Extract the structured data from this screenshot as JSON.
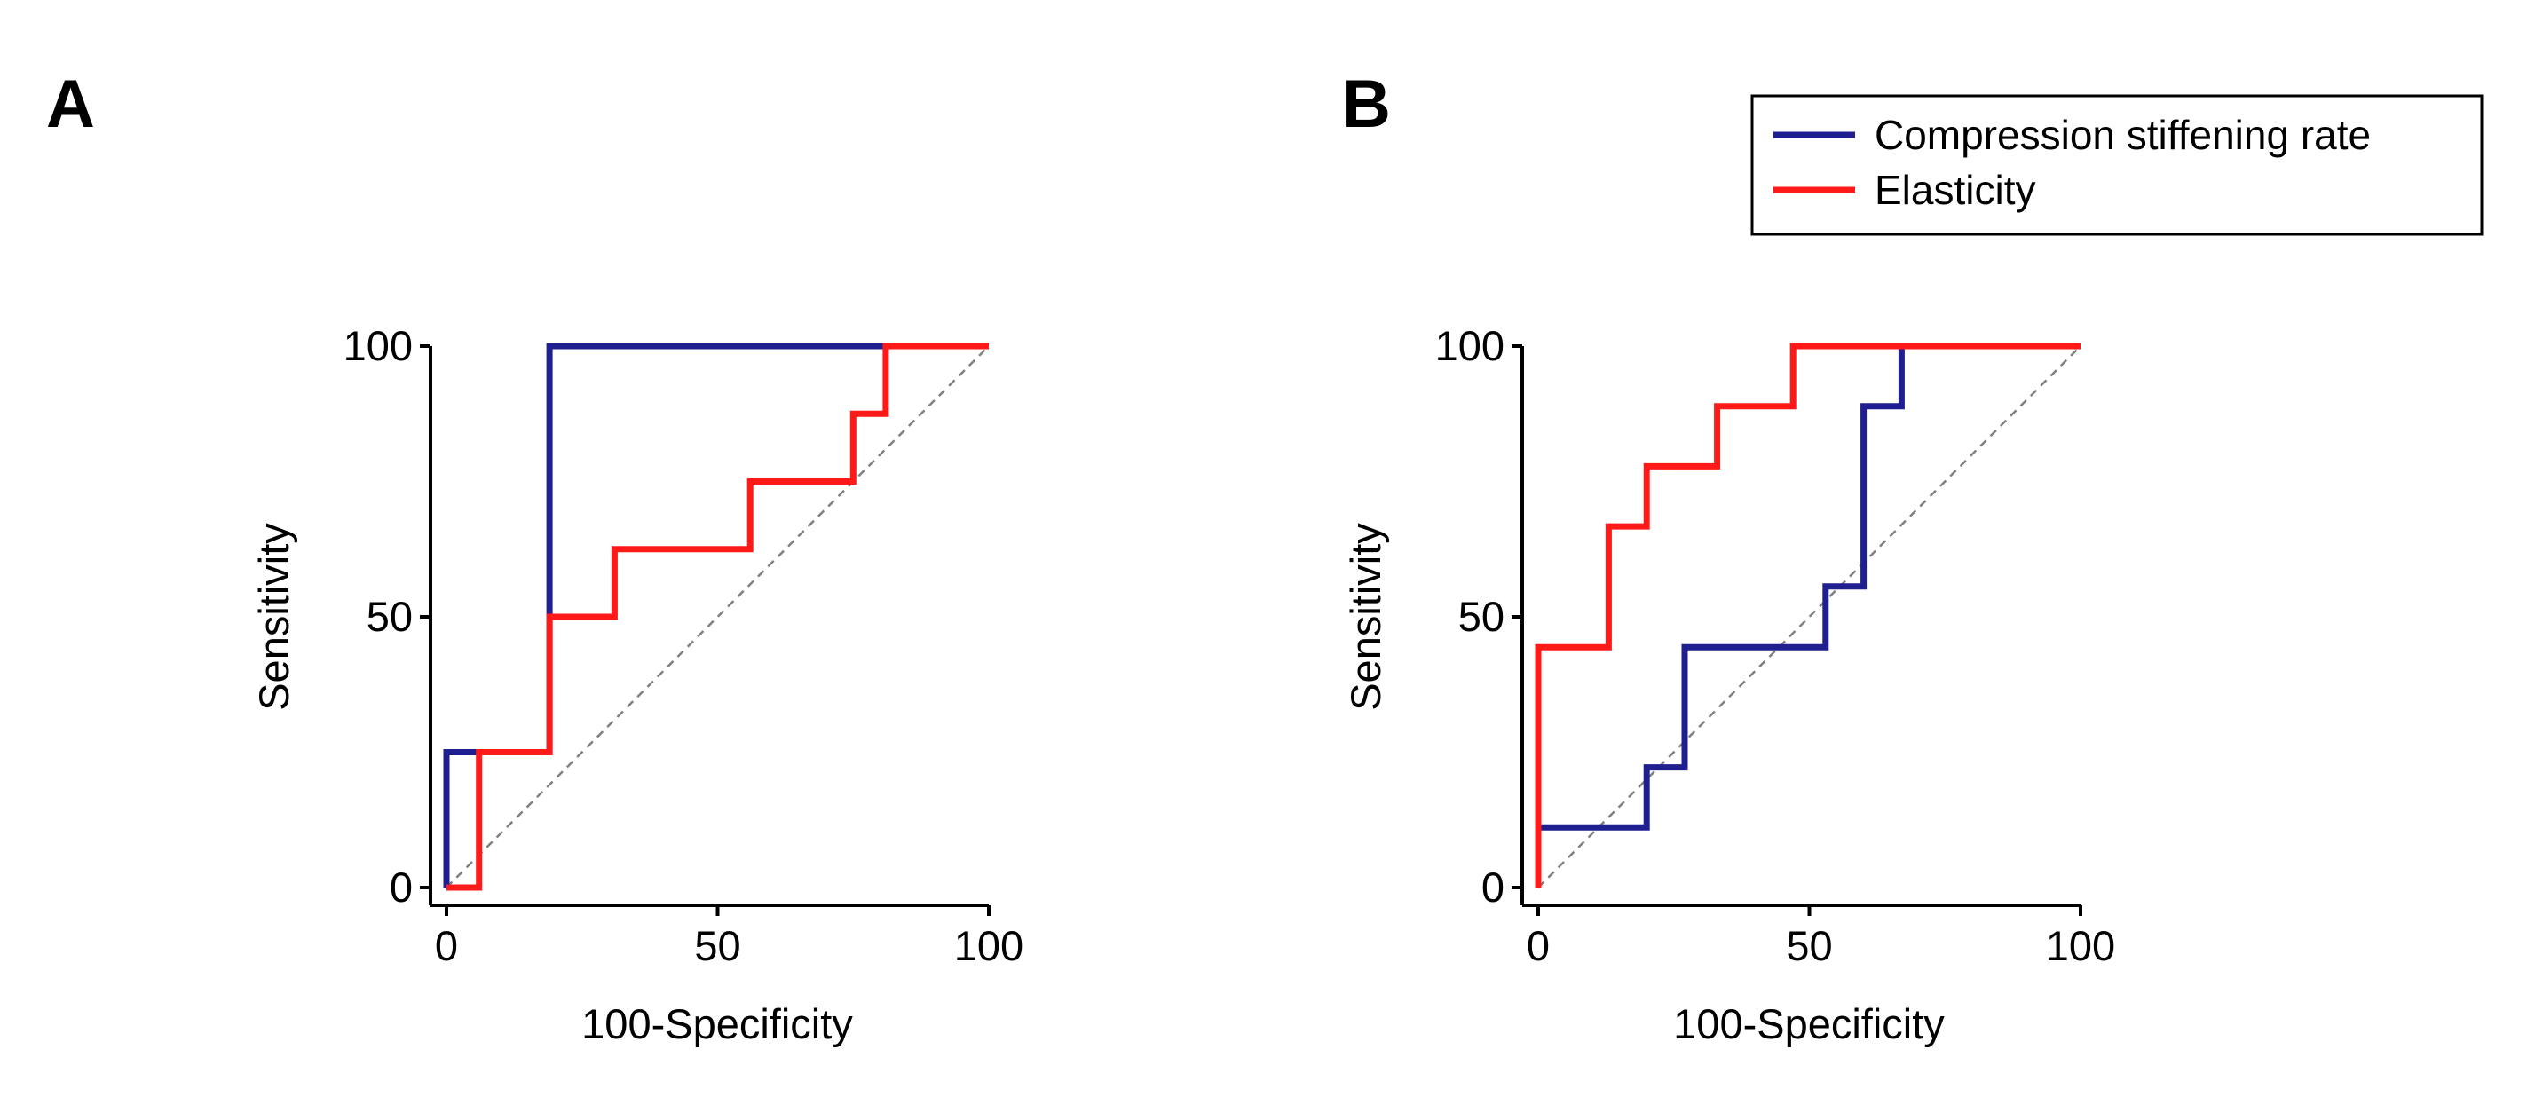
{
  "colors": {
    "series_blue": "#1f1f8f",
    "series_red": "#ff1a1a",
    "reference_line": "#808080",
    "axis": "#000000",
    "background": "#ffffff"
  },
  "legend": {
    "entries": [
      "Compression stiffening rate",
      "Elasticity"
    ]
  },
  "chart_data": [
    {
      "panel": "A",
      "type": "line",
      "title": "",
      "xlabel": "100-Specificity",
      "ylabel": "Sensitivity",
      "xlim": [
        0,
        100
      ],
      "ylim": [
        0,
        100
      ],
      "x_ticks": [
        "0",
        "50",
        "100"
      ],
      "y_ticks": [
        "0",
        "50",
        "100"
      ],
      "reference_line": "diagonal",
      "series": [
        {
          "name": "Compression stiffening rate",
          "color": "#1f1f8f",
          "x": [
            0,
            0,
            19,
            19,
            100
          ],
          "y": [
            0,
            25,
            25,
            100,
            100
          ]
        },
        {
          "name": "Elasticity",
          "color": "#ff1a1a",
          "x": [
            0,
            6,
            6,
            19,
            19,
            31,
            31,
            56,
            56,
            75,
            75,
            81,
            81,
            100
          ],
          "y": [
            0,
            0,
            25,
            25,
            50,
            50,
            62.5,
            62.5,
            75,
            75,
            87.5,
            87.5,
            100,
            100
          ]
        }
      ]
    },
    {
      "panel": "B",
      "type": "line",
      "title": "",
      "xlabel": "100-Specificity",
      "ylabel": "Sensitivity",
      "xlim": [
        0,
        100
      ],
      "ylim": [
        0,
        100
      ],
      "x_ticks": [
        "0",
        "50",
        "100"
      ],
      "y_ticks": [
        "0",
        "50",
        "100"
      ],
      "reference_line": "diagonal",
      "series": [
        {
          "name": "Compression stiffening rate",
          "color": "#1f1f8f",
          "x": [
            0,
            0,
            20,
            20,
            27,
            27,
            53,
            53,
            60,
            60,
            67,
            67,
            100
          ],
          "y": [
            0,
            11.1,
            11.1,
            22.2,
            22.2,
            44.4,
            44.4,
            55.6,
            55.6,
            88.9,
            88.9,
            100,
            100
          ]
        },
        {
          "name": "Elasticity",
          "color": "#ff1a1a",
          "x": [
            0,
            0,
            13,
            13,
            20,
            20,
            33,
            33,
            47,
            47,
            100
          ],
          "y": [
            0,
            44.4,
            44.4,
            66.7,
            66.7,
            77.8,
            77.8,
            88.9,
            88.9,
            100,
            100
          ]
        }
      ]
    }
  ]
}
